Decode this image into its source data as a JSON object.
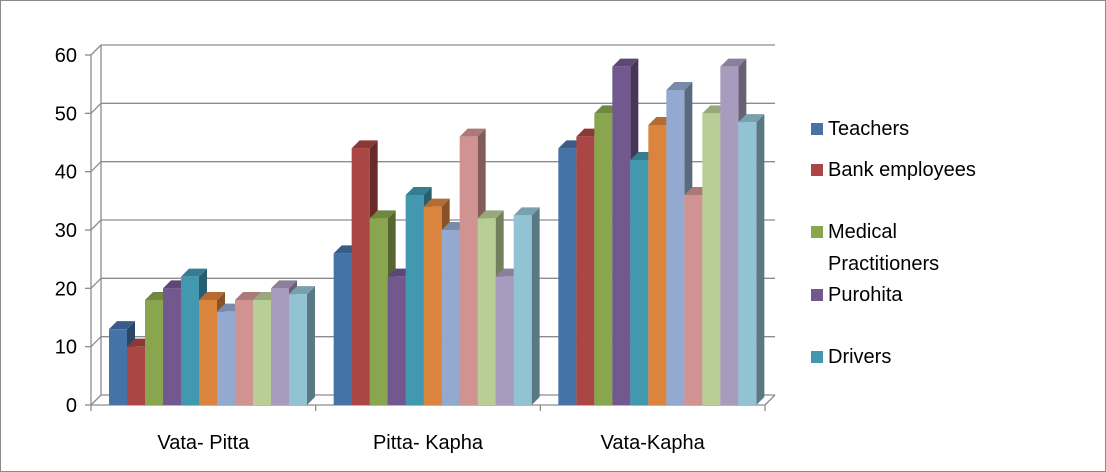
{
  "chart_data": {
    "type": "bar",
    "categories": [
      "Vata- Pitta",
      "Pitta- Kapha",
      "Vata-Kapha"
    ],
    "ylim": [
      0,
      60
    ],
    "yticks": [
      0,
      10,
      20,
      30,
      40,
      50,
      60
    ],
    "grid": true,
    "legend_position": "right",
    "series": [
      {
        "name": "Teachers",
        "color": "#4572a7",
        "values": [
          13,
          26,
          44
        ]
      },
      {
        "name": "Bank employees",
        "color": "#aa4643",
        "values": [
          10,
          44,
          46
        ]
      },
      {
        "name": "Medical Practitioners",
        "color": "#89a54e",
        "values": [
          18,
          32,
          50
        ]
      },
      {
        "name": "Purohita",
        "color": "#71588f",
        "values": [
          20,
          22,
          58
        ]
      },
      {
        "name": "Drivers",
        "color": "#4198af",
        "values": [
          22,
          36,
          42
        ]
      },
      {
        "name": "",
        "color": "#db843d",
        "values": [
          18,
          34,
          48
        ]
      },
      {
        "name": "",
        "color": "#93a9cf",
        "values": [
          16,
          30,
          54
        ]
      },
      {
        "name": "",
        "color": "#d19392",
        "values": [
          18,
          46,
          36
        ]
      },
      {
        "name": "",
        "color": "#b9cd96",
        "values": [
          18,
          32,
          50
        ]
      },
      {
        "name": "",
        "color": "#a99bbd",
        "values": [
          20,
          22,
          58
        ]
      },
      {
        "name": "",
        "color": "#92c3d4",
        "values": [
          19,
          32.5,
          48.5
        ]
      }
    ],
    "legend": [
      {
        "label": "Teachers",
        "color": "#4572a7"
      },
      {
        "label": "Bank employees",
        "color": "#aa4643"
      },
      {
        "label_lines": [
          "Medical",
          "Practitioners"
        ],
        "color": "#89a54e"
      },
      {
        "label": "Purohita",
        "color": "#71588f"
      },
      {
        "label": "Drivers",
        "color": "#4198af"
      }
    ]
  }
}
